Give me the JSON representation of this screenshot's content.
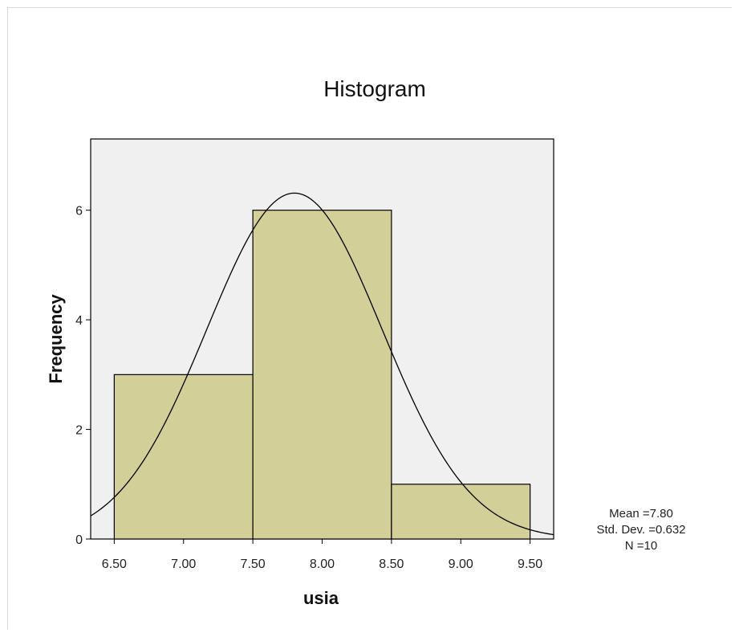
{
  "chart_data": {
    "type": "bar",
    "title": "Histogram",
    "xlabel": "usia",
    "ylabel": "Frequency",
    "bins": [
      {
        "from": 6.5,
        "to": 7.5,
        "count": 3
      },
      {
        "from": 7.5,
        "to": 8.5,
        "count": 6
      },
      {
        "from": 8.5,
        "to": 9.5,
        "count": 1
      }
    ],
    "xlim": [
      6.33,
      9.67
    ],
    "ylim": [
      0,
      7.3
    ],
    "x_ticks": [
      "6.50",
      "7.00",
      "7.50",
      "8.00",
      "8.50",
      "9.00",
      "9.50"
    ],
    "y_ticks": [
      "0",
      "2",
      "4",
      "6"
    ],
    "normal_curve": {
      "mean": 7.8,
      "sd": 0.632,
      "n": 10,
      "bin_width": 1.0
    },
    "stats": {
      "mean": "Mean =7.80",
      "sd": "Std. Dev. =0.632",
      "n": "N =10"
    },
    "colors": {
      "plot_background": "#f0f0f0",
      "bar_fill": "#d3cf99",
      "bar_stroke": "#000000",
      "curve": "#000000"
    }
  }
}
